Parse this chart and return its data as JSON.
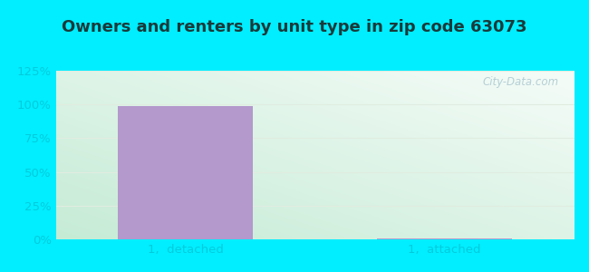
{
  "title": "Owners and renters by unit type in zip code 63073",
  "categories": [
    "1,  detached",
    "1,  attached"
  ],
  "values": [
    98.5,
    0.8
  ],
  "bar_color": "#b399cc",
  "ylim": [
    0,
    125
  ],
  "yticks": [
    0,
    25,
    50,
    75,
    100,
    125
  ],
  "ytick_labels": [
    "0%",
    "25%",
    "50%",
    "75%",
    "100%",
    "125%"
  ],
  "background_outer": "#00eeff",
  "grid_color": "#e0ece0",
  "title_fontsize": 13,
  "tick_fontsize": 9.5,
  "tick_color": "#00ccdd",
  "watermark": "City-Data.com",
  "watermark_color": "#aac8d0",
  "inner_bg_left": "#c5ebd5",
  "inner_bg_right": "#f0faf8",
  "inner_bg_top": "#f5fcf8",
  "inner_bg_bottom": "#c8edd8"
}
